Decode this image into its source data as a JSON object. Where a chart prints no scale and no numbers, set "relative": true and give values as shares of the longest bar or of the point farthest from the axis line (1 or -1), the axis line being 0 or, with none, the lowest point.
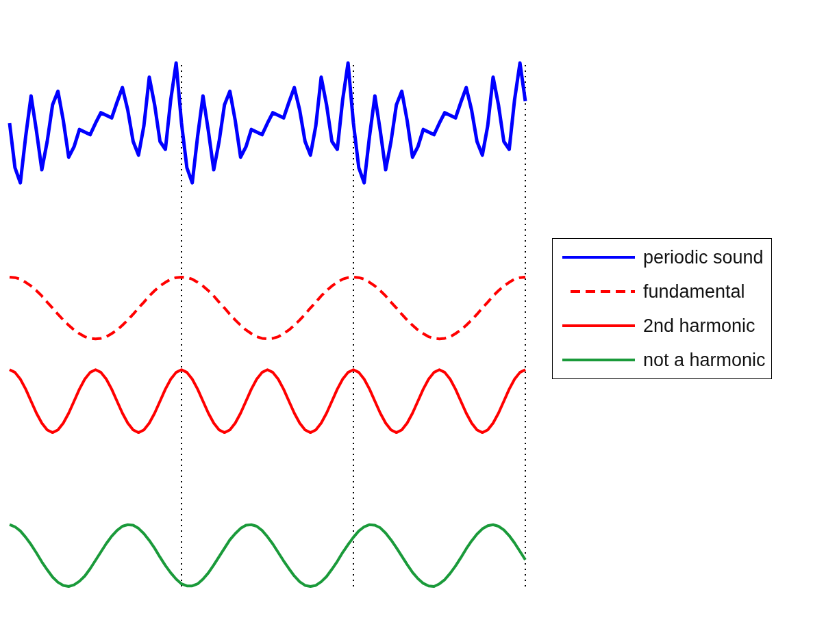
{
  "chart_data": {
    "type": "line",
    "relative": true,
    "legend": "right",
    "marker": "none",
    "categories": [
      null,
      null,
      null,
      null,
      null,
      null,
      null,
      null,
      null,
      null,
      null,
      null,
      null,
      null,
      null,
      null,
      null,
      null,
      null,
      null,
      null,
      null,
      null,
      null,
      null,
      null,
      null,
      null,
      null,
      null,
      null,
      null,
      null,
      null,
      null,
      null,
      null,
      null,
      null,
      null,
      null,
      null,
      null,
      null,
      null,
      null,
      null,
      null,
      null,
      null,
      null,
      null,
      null,
      null,
      null,
      null,
      null,
      null,
      null,
      null,
      null,
      null,
      null,
      null,
      null,
      null,
      null,
      null,
      null,
      null,
      null,
      null,
      null,
      null,
      null,
      null,
      null,
      null,
      null,
      null,
      null,
      null,
      null,
      null,
      null,
      null,
      null,
      null,
      null,
      null,
      null,
      null,
      null,
      null,
      null,
      null,
      null
    ],
    "grid": "x",
    "series": [
      {
        "name": "periodic sound",
        "color": "#0000ff",
        "line_style": "solid",
        "values": [
          0.885,
          0.8,
          0.771,
          0.86,
          0.937,
          0.87,
          0.796,
          0.85,
          0.92,
          0.946,
          0.89,
          0.82,
          0.84,
          0.873,
          0.868,
          0.863,
          0.885,
          0.905,
          0.9,
          0.895,
          0.925,
          0.953,
          0.91,
          0.85,
          0.824,
          0.88,
          0.973,
          0.92,
          0.85,
          0.835,
          0.93,
          1.0,
          0.885,
          0.8,
          0.771,
          0.86,
          0.937,
          0.87,
          0.796,
          0.85,
          0.92,
          0.946,
          0.89,
          0.82,
          0.84,
          0.873,
          0.868,
          0.863,
          0.885,
          0.905,
          0.9,
          0.895,
          0.925,
          0.953,
          0.91,
          0.85,
          0.824,
          0.88,
          0.973,
          0.92,
          0.85,
          0.835,
          0.93,
          1.0,
          0.885,
          0.8,
          0.771,
          0.86,
          0.937,
          0.87,
          0.796,
          0.85,
          0.92,
          0.946,
          0.89,
          0.82,
          0.84,
          0.873,
          0.868,
          0.863,
          0.885,
          0.905,
          0.9,
          0.895,
          0.925,
          0.953,
          0.91,
          0.85,
          0.824,
          0.88,
          0.973,
          0.92,
          0.85,
          0.835,
          0.93,
          1.0,
          0.927
        ]
      },
      {
        "name": "fundamental",
        "color": "#ff0000",
        "line_style": "dashed",
        "values": [
          0.591,
          0.59,
          0.587,
          0.581,
          0.574,
          0.565,
          0.555,
          0.543,
          0.532,
          0.52,
          0.509,
          0.499,
          0.49,
          0.483,
          0.477,
          0.474,
          0.473,
          0.474,
          0.477,
          0.483,
          0.49,
          0.499,
          0.509,
          0.52,
          0.532,
          0.543,
          0.555,
          0.565,
          0.574,
          0.581,
          0.587,
          0.59,
          0.591,
          0.59,
          0.587,
          0.581,
          0.574,
          0.565,
          0.555,
          0.543,
          0.532,
          0.52,
          0.509,
          0.499,
          0.49,
          0.483,
          0.477,
          0.474,
          0.473,
          0.474,
          0.477,
          0.483,
          0.49,
          0.499,
          0.509,
          0.52,
          0.532,
          0.543,
          0.555,
          0.565,
          0.574,
          0.581,
          0.587,
          0.59,
          0.591,
          0.59,
          0.587,
          0.581,
          0.574,
          0.565,
          0.555,
          0.543,
          0.532,
          0.52,
          0.509,
          0.499,
          0.49,
          0.483,
          0.477,
          0.474,
          0.473,
          0.474,
          0.477,
          0.483,
          0.49,
          0.499,
          0.509,
          0.52,
          0.532,
          0.543,
          0.555,
          0.565,
          0.574,
          0.581,
          0.587,
          0.59,
          0.591
        ]
      },
      {
        "name": "2nd harmonic",
        "color": "#ff0000",
        "line_style": "solid",
        "values": [
          0.414,
          0.409,
          0.396,
          0.377,
          0.354,
          0.331,
          0.312,
          0.299,
          0.294,
          0.299,
          0.312,
          0.331,
          0.354,
          0.377,
          0.396,
          0.409,
          0.414,
          0.409,
          0.396,
          0.377,
          0.354,
          0.331,
          0.312,
          0.299,
          0.294,
          0.299,
          0.312,
          0.331,
          0.354,
          0.377,
          0.396,
          0.409,
          0.414,
          0.409,
          0.396,
          0.377,
          0.354,
          0.331,
          0.312,
          0.299,
          0.294,
          0.299,
          0.312,
          0.331,
          0.354,
          0.377,
          0.396,
          0.409,
          0.414,
          0.409,
          0.396,
          0.377,
          0.354,
          0.331,
          0.312,
          0.299,
          0.294,
          0.299,
          0.312,
          0.331,
          0.354,
          0.377,
          0.396,
          0.409,
          0.414,
          0.409,
          0.396,
          0.377,
          0.354,
          0.331,
          0.312,
          0.299,
          0.294,
          0.299,
          0.312,
          0.331,
          0.354,
          0.377,
          0.396,
          0.409,
          0.414,
          0.409,
          0.396,
          0.377,
          0.354,
          0.331,
          0.312,
          0.299,
          0.294,
          0.299,
          0.312,
          0.331,
          0.354,
          0.377,
          0.396,
          0.409,
          0.414
        ]
      },
      {
        "name": "not a harmonic",
        "color": "#1a9a3a",
        "line_style": "solid",
        "values": [
          0.118,
          0.114,
          0.106,
          0.094,
          0.08,
          0.064,
          0.047,
          0.032,
          0.018,
          0.008,
          0.002,
          0,
          0.003,
          0.01,
          0.02,
          0.034,
          0.05,
          0.066,
          0.082,
          0.096,
          0.107,
          0.115,
          0.118,
          0.117,
          0.111,
          0.101,
          0.088,
          0.073,
          0.056,
          0.04,
          0.026,
          0.014,
          0.005,
          0.001,
          0.001,
          0.005,
          0.014,
          0.026,
          0.041,
          0.057,
          0.073,
          0.089,
          0.101,
          0.111,
          0.117,
          0.118,
          0.115,
          0.107,
          0.095,
          0.081,
          0.065,
          0.049,
          0.034,
          0.02,
          0.009,
          0.002,
          0,
          0.002,
          0.009,
          0.019,
          0.033,
          0.048,
          0.065,
          0.08,
          0.094,
          0.106,
          0.114,
          0.118,
          0.117,
          0.112,
          0.102,
          0.089,
          0.074,
          0.058,
          0.042,
          0.027,
          0.015,
          0.006,
          0.001,
          0,
          0.005,
          0.013,
          0.025,
          0.039,
          0.055,
          0.072,
          0.087,
          0.1,
          0.11,
          0.116,
          0.118,
          0.115,
          0.108,
          0.097,
          0.083,
          0.067,
          0.051
        ]
      }
    ]
  }
}
